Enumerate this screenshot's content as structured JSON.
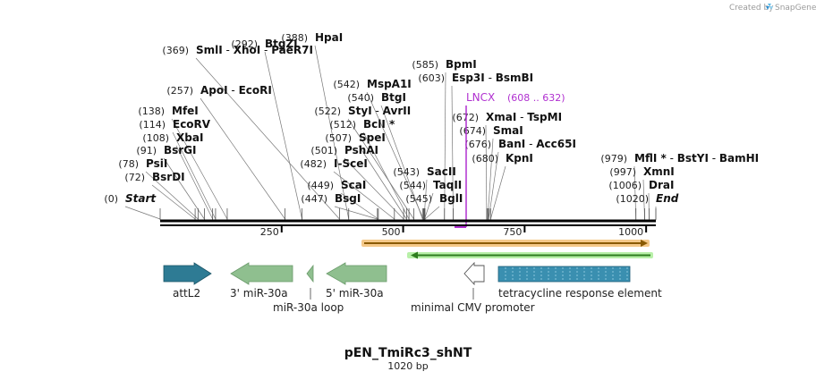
{
  "credit": {
    "text": "Created by",
    "brand": "SnapGene"
  },
  "map": {
    "name": "pEN_TmiRc3_shNT",
    "length_label": "1020 bp",
    "length": 1020,
    "ticks": [
      {
        "value": 250,
        "label": "250"
      },
      {
        "value": 500,
        "label": "500"
      },
      {
        "value": 750,
        "label": "750"
      },
      {
        "value": 1000,
        "label": "1000"
      }
    ]
  },
  "sites": [
    {
      "pos": "(0)",
      "parts": [
        {
          "text": "Start",
          "italic": true
        }
      ],
      "bp": 0
    },
    {
      "pos": "(72)",
      "parts": [
        {
          "text": "BsrDI"
        }
      ],
      "bp": 72
    },
    {
      "pos": "(78)",
      "parts": [
        {
          "text": "PsiI"
        }
      ],
      "bp": 78
    },
    {
      "pos": "(91)",
      "parts": [
        {
          "text": "BsrGI"
        }
      ],
      "bp": 91
    },
    {
      "pos": "(108)",
      "parts": [
        {
          "text": "XbaI"
        }
      ],
      "bp": 108
    },
    {
      "pos": "(114)",
      "parts": [
        {
          "text": "EcoRV"
        }
      ],
      "bp": 114
    },
    {
      "pos": "(138)",
      "parts": [
        {
          "text": "MfeI"
        }
      ],
      "bp": 138
    },
    {
      "pos": "(257)",
      "parts": [
        {
          "text": "ApoI"
        },
        {
          "text": "EcoRI"
        }
      ],
      "bp": 257
    },
    {
      "pos": "(292)",
      "parts": [
        {
          "text": "BtgZI"
        }
      ],
      "bp": 292
    },
    {
      "pos": "(369)",
      "parts": [
        {
          "text": "SmlI"
        },
        {
          "text": "XhoI"
        },
        {
          "text": "PaeR7I"
        }
      ],
      "bp": 369
    },
    {
      "pos": "(388)",
      "parts": [
        {
          "text": "HpaI"
        }
      ],
      "bp": 388
    },
    {
      "pos": "(447)",
      "parts": [
        {
          "text": "BsgI"
        }
      ],
      "bp": 447
    },
    {
      "pos": "(449)",
      "parts": [
        {
          "text": "ScaI"
        }
      ],
      "bp": 449
    },
    {
      "pos": "(482)",
      "parts": [
        {
          "text": "I-SceI"
        }
      ],
      "bp": 482
    },
    {
      "pos": "(501)",
      "parts": [
        {
          "text": "PshAI"
        }
      ],
      "bp": 501
    },
    {
      "pos": "(507)",
      "parts": [
        {
          "text": "SpeI"
        }
      ],
      "bp": 507
    },
    {
      "pos": "(512)",
      "parts": [
        {
          "text": "BclI *"
        }
      ],
      "bp": 512
    },
    {
      "pos": "(522)",
      "parts": [
        {
          "text": "StyI"
        },
        {
          "text": "AvrII"
        }
      ],
      "bp": 522
    },
    {
      "pos": "(540)",
      "parts": [
        {
          "text": "BtgI"
        }
      ],
      "bp": 540
    },
    {
      "pos": "(542)",
      "parts": [
        {
          "text": "MspA1I"
        }
      ],
      "bp": 542
    },
    {
      "pos": "(543)",
      "parts": [
        {
          "text": "SacII"
        }
      ],
      "bp": 543
    },
    {
      "pos": "(544)",
      "parts": [
        {
          "text": "TaqII"
        }
      ],
      "bp": 544
    },
    {
      "pos": "(545)",
      "parts": [
        {
          "text": "BglI"
        }
      ],
      "bp": 545
    },
    {
      "pos": "(585)",
      "parts": [
        {
          "text": "BpmI"
        }
      ],
      "bp": 585
    },
    {
      "pos": "(603)",
      "parts": [
        {
          "text": "Esp3I"
        },
        {
          "text": "BsmBI"
        }
      ],
      "bp": 603
    },
    {
      "pos": "(672)",
      "parts": [
        {
          "text": "XmaI"
        },
        {
          "text": "TspMI"
        }
      ],
      "bp": 672
    },
    {
      "pos": "(674)",
      "parts": [
        {
          "text": "SmaI"
        }
      ],
      "bp": 674
    },
    {
      "pos": "(676)",
      "parts": [
        {
          "text": "BanI"
        },
        {
          "text": "Acc65I"
        }
      ],
      "bp": 676
    },
    {
      "pos": "(680)",
      "parts": [
        {
          "text": "KpnI"
        }
      ],
      "bp": 680
    },
    {
      "pos": "(979)",
      "parts": [
        {
          "text": "MflI *"
        },
        {
          "text": "BstYI"
        },
        {
          "text": "BamHI"
        }
      ],
      "bp": 979
    },
    {
      "pos": "(997)",
      "parts": [
        {
          "text": "XmnI"
        }
      ],
      "bp": 997
    },
    {
      "pos": "(1006)",
      "parts": [
        {
          "text": "DraI"
        }
      ],
      "bp": 1006
    },
    {
      "pos": "(1020)",
      "parts": [
        {
          "text": "End",
          "italic": true
        }
      ],
      "bp": 1020
    }
  ],
  "primer": {
    "name": "LNCX",
    "range": "(608 .. 632)",
    "color": "#b030d0"
  },
  "features": [
    {
      "name": "attL2",
      "color": "#2e7b94"
    },
    {
      "name": "3' miR-30a",
      "color": "#8fbf8f"
    },
    {
      "name": "miR-30a loop",
      "color": "#8fbf8f"
    },
    {
      "name": "5' miR-30a",
      "color": "#8fbf8f"
    },
    {
      "name": "minimal CMV promoter",
      "color": "#ffffff"
    },
    {
      "name": "tetracycline response element",
      "color": "#3a8fb0"
    }
  ],
  "orfs": [
    {
      "direction": "forward",
      "color": "#8a5a00",
      "highlight": "#f5c98a"
    },
    {
      "direction": "reverse",
      "color": "#2e7d1e",
      "highlight": "#b8f0a8"
    }
  ]
}
